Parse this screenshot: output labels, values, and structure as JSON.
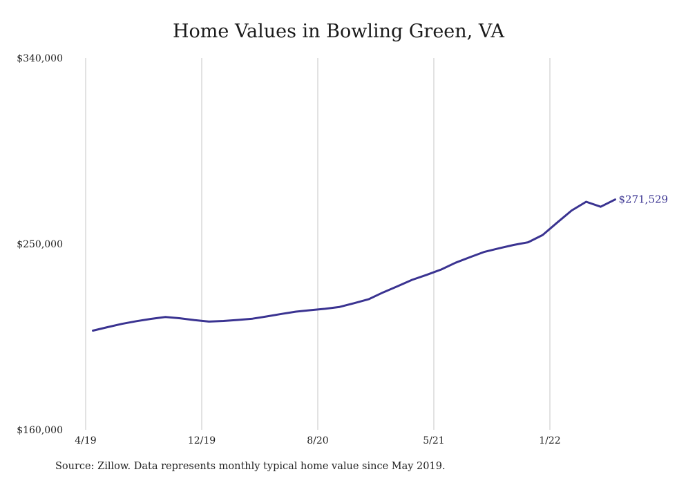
{
  "colors": {
    "line": "#3a3391",
    "grid": "#c4c4c4",
    "text": "#222222"
  },
  "chart_data": {
    "type": "line",
    "title": "Home Values in Bowling Green, VA",
    "x_ticks": [
      {
        "label": "4/19",
        "month": 0
      },
      {
        "label": "12/19",
        "month": 8
      },
      {
        "label": "8/20",
        "month": 16
      },
      {
        "label": "5/21",
        "month": 24
      },
      {
        "label": "1/22",
        "month": 32
      }
    ],
    "y_ticks": [
      {
        "label": "$160,000",
        "value": 160000
      },
      {
        "label": "$250,000",
        "value": 250000
      },
      {
        "label": "$340,000",
        "value": 340000
      }
    ],
    "ylim": [
      160000,
      340000
    ],
    "x_range_months": [
      0,
      39
    ],
    "grid": "vertical",
    "series": [
      {
        "x": [
          0.5,
          1.5,
          2.5,
          3.5,
          4.5,
          5.5,
          6.5,
          7.5,
          8.5,
          9.5,
          10.5,
          11.5,
          12.5,
          13.5,
          14.5,
          15.5,
          16.5,
          17.5,
          18.5,
          19.5,
          20.5,
          21.5,
          22.5,
          23.5,
          24.5,
          25.5,
          26.5,
          27.5,
          28.5,
          29.5,
          30.5,
          31.5,
          32.5,
          33.5,
          34.5,
          35.5,
          36.5
        ],
        "values": [
          208000,
          209700,
          211300,
          212600,
          213700,
          214600,
          214000,
          213100,
          212400,
          212700,
          213200,
          213800,
          214900,
          216100,
          217200,
          217900,
          218600,
          219500,
          221300,
          223200,
          226500,
          229500,
          232600,
          235000,
          237600,
          240900,
          243600,
          246200,
          247900,
          249500,
          250800,
          254300,
          260300,
          266200,
          270400,
          268000,
          271529
        ]
      }
    ],
    "end_label": "$271,529",
    "source_note": "Source: Zillow. Data represents monthly typical home value since May 2019."
  }
}
